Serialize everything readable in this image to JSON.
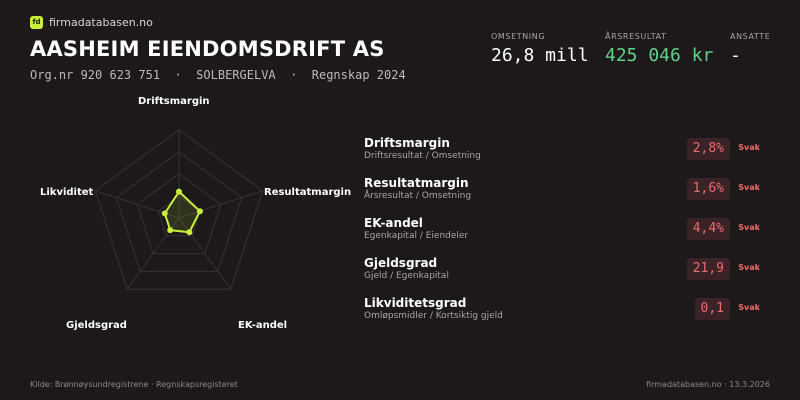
{
  "brand": {
    "logo_text": "fd",
    "name": "firmadatabasen.no"
  },
  "company": {
    "name": "AASHEIM EIENDOMSDRIFT AS",
    "subline": "Org.nr 920 623 751  ·  SOLBERGELVA  ·  Regnskap 2024"
  },
  "kpis": [
    {
      "label": "OMSETNING",
      "value": "26,8 mill",
      "color": "#ffffff"
    },
    {
      "label": "ÅRSRESULTAT",
      "value": "425 046 kr",
      "color": "#5fd38a"
    },
    {
      "label": "ANSATTE",
      "value": "-",
      "color": "#ffffff"
    }
  ],
  "radar": {
    "axes": [
      "Driftsmargin",
      "Resultatmargin",
      "EK-andel",
      "Gjeldsgrad",
      "Likviditet"
    ],
    "scores": [
      0.3,
      0.25,
      0.2,
      0.17,
      0.17
    ],
    "ring_count": 4,
    "accent": "#c8f03a"
  },
  "metrics": [
    {
      "name": "Driftsmargin",
      "sub": "Driftsresultat / Omsetning",
      "value": "2,8%",
      "status": "Svak"
    },
    {
      "name": "Resultatmargin",
      "sub": "Årsresultat / Omsetning",
      "value": "1,6%",
      "status": "Svak"
    },
    {
      "name": "EK-andel",
      "sub": "Egenkapital / Eiendeler",
      "value": "4,4%",
      "status": "Svak"
    },
    {
      "name": "Gjeldsgrad",
      "sub": "Gjeld / Egenkapital",
      "value": "21,9",
      "status": "Svak"
    },
    {
      "name": "Likviditetsgrad",
      "sub": "Omløpsmidler / Kortsiktig gjeld",
      "value": "0,1",
      "status": "Svak"
    }
  ],
  "footer": {
    "source": "Kilde: Brønnøysundregistrene · Regnskapsregisteret",
    "site_date": "firmadatabasen.no · 13.3.2026"
  }
}
